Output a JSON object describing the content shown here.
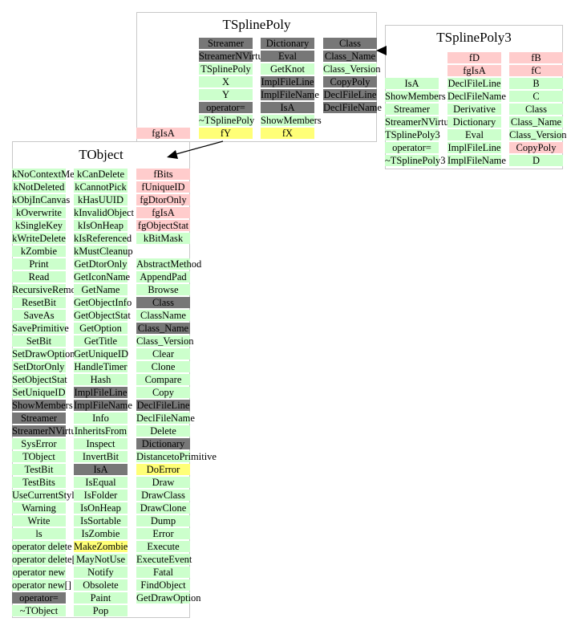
{
  "colors": {
    "method": "#ccffcc",
    "member": "#ffcccc",
    "inherited": "#777777",
    "highlight": "#ffff77",
    "border": "#c8c8c8"
  },
  "boxes": [
    {
      "id": "tsplinepoly",
      "title": "TSplinePoly",
      "columns": [
        {
          "cells": [
            {
              "text": "fgIsA",
              "kind": "member"
            }
          ]
        },
        {
          "cells": [
            {
              "text": "Streamer",
              "kind": "base"
            },
            {
              "text": "StreamerNVirtual",
              "kind": "base"
            },
            {
              "text": "TSplinePoly",
              "kind": "method"
            },
            {
              "text": "X",
              "kind": "method"
            },
            {
              "text": "Y",
              "kind": "method"
            },
            {
              "text": "operator=",
              "kind": "base"
            },
            {
              "text": "~TSplinePoly",
              "kind": "method"
            },
            {
              "text": "fY",
              "kind": "hl"
            }
          ]
        },
        {
          "cells": [
            {
              "text": "Dictionary",
              "kind": "base"
            },
            {
              "text": "Eval",
              "kind": "base"
            },
            {
              "text": "GetKnot",
              "kind": "method"
            },
            {
              "text": "ImplFileLine",
              "kind": "base"
            },
            {
              "text": "ImplFileName",
              "kind": "base"
            },
            {
              "text": "IsA",
              "kind": "base"
            },
            {
              "text": "ShowMembers",
              "kind": "method"
            },
            {
              "text": "fX",
              "kind": "hl"
            }
          ]
        },
        {
          "cells": [
            {
              "text": "Class",
              "kind": "base"
            },
            {
              "text": "Class_Name",
              "kind": "base"
            },
            {
              "text": "Class_Version",
              "kind": "method"
            },
            {
              "text": "CopyPoly",
              "kind": "base"
            },
            {
              "text": "DeclFileLine",
              "kind": "base"
            },
            {
              "text": "DeclFileName",
              "kind": "base"
            }
          ]
        }
      ]
    },
    {
      "id": "tsplinepoly3",
      "title": "TSplinePoly3",
      "columns": [
        {
          "cells": [
            {
              "text": "IsA",
              "kind": "method"
            },
            {
              "text": "ShowMembers",
              "kind": "method"
            },
            {
              "text": "Streamer",
              "kind": "method"
            },
            {
              "text": "StreamerNVirtual",
              "kind": "method"
            },
            {
              "text": "TSplinePoly3",
              "kind": "method"
            },
            {
              "text": "operator=",
              "kind": "method"
            },
            {
              "text": "~TSplinePoly3",
              "kind": "method"
            }
          ]
        },
        {
          "cells": [
            {
              "text": "fD",
              "kind": "member"
            },
            {
              "text": "fgIsA",
              "kind": "member"
            },
            {
              "text": "DeclFileLine",
              "kind": "method"
            },
            {
              "text": "DeclFileName",
              "kind": "method"
            },
            {
              "text": "Derivative",
              "kind": "method"
            },
            {
              "text": "Dictionary",
              "kind": "method"
            },
            {
              "text": "Eval",
              "kind": "method"
            },
            {
              "text": "ImplFileLine",
              "kind": "method"
            },
            {
              "text": "ImplFileName",
              "kind": "method"
            }
          ]
        },
        {
          "cells": [
            {
              "text": "fB",
              "kind": "member"
            },
            {
              "text": "fC",
              "kind": "member"
            },
            {
              "text": "B",
              "kind": "method"
            },
            {
              "text": "C",
              "kind": "method"
            },
            {
              "text": "Class",
              "kind": "method"
            },
            {
              "text": "Class_Name",
              "kind": "method"
            },
            {
              "text": "Class_Version",
              "kind": "method"
            },
            {
              "text": "CopyPoly",
              "kind": "member"
            },
            {
              "text": "D",
              "kind": "method"
            }
          ]
        }
      ]
    },
    {
      "id": "tobject",
      "title": "TObject",
      "columns": [
        {
          "cells": [
            {
              "text": "kNoContextMenu",
              "kind": "method"
            },
            {
              "text": "kNotDeleted",
              "kind": "method"
            },
            {
              "text": "kObjInCanvas",
              "kind": "method"
            },
            {
              "text": "kOverwrite",
              "kind": "method"
            },
            {
              "text": "kSingleKey",
              "kind": "method"
            },
            {
              "text": "kWriteDelete",
              "kind": "method"
            },
            {
              "text": "kZombie",
              "kind": "method"
            },
            {
              "text": "Print",
              "kind": "method"
            },
            {
              "text": "Read",
              "kind": "method"
            },
            {
              "text": "RecursiveRemove",
              "kind": "method"
            },
            {
              "text": "ResetBit",
              "kind": "method"
            },
            {
              "text": "SaveAs",
              "kind": "method"
            },
            {
              "text": "SavePrimitive",
              "kind": "method"
            },
            {
              "text": "SetBit",
              "kind": "method"
            },
            {
              "text": "SetDrawOption",
              "kind": "method"
            },
            {
              "text": "SetDtorOnly",
              "kind": "method"
            },
            {
              "text": "SetObjectStat",
              "kind": "method"
            },
            {
              "text": "SetUniqueID",
              "kind": "method"
            },
            {
              "text": "ShowMembers",
              "kind": "base"
            },
            {
              "text": "Streamer",
              "kind": "base"
            },
            {
              "text": "StreamerNVirtual",
              "kind": "base"
            },
            {
              "text": "SysError",
              "kind": "method"
            },
            {
              "text": "TObject",
              "kind": "method"
            },
            {
              "text": "TestBit",
              "kind": "method"
            },
            {
              "text": "TestBits",
              "kind": "method"
            },
            {
              "text": "UseCurrentStyle",
              "kind": "method"
            },
            {
              "text": "Warning",
              "kind": "method"
            },
            {
              "text": "Write",
              "kind": "method"
            },
            {
              "text": "ls",
              "kind": "method"
            },
            {
              "text": "operator delete",
              "kind": "method"
            },
            {
              "text": "operator delete[]",
              "kind": "method"
            },
            {
              "text": "operator new",
              "kind": "method"
            },
            {
              "text": "operator new[]",
              "kind": "method"
            },
            {
              "text": "operator=",
              "kind": "base"
            },
            {
              "text": "~TObject",
              "kind": "method"
            }
          ]
        },
        {
          "cells": [
            {
              "text": "kCanDelete",
              "kind": "method"
            },
            {
              "text": "kCannotPick",
              "kind": "method"
            },
            {
              "text": "kHasUUID",
              "kind": "method"
            },
            {
              "text": "kInvalidObject",
              "kind": "method"
            },
            {
              "text": "kIsOnHeap",
              "kind": "method"
            },
            {
              "text": "kIsReferenced",
              "kind": "method"
            },
            {
              "text": "kMustCleanup",
              "kind": "method"
            },
            {
              "text": "GetDtorOnly",
              "kind": "method"
            },
            {
              "text": "GetIconName",
              "kind": "method"
            },
            {
              "text": "GetName",
              "kind": "method"
            },
            {
              "text": "GetObjectInfo",
              "kind": "method"
            },
            {
              "text": "GetObjectStat",
              "kind": "method"
            },
            {
              "text": "GetOption",
              "kind": "method"
            },
            {
              "text": "GetTitle",
              "kind": "method"
            },
            {
              "text": "GetUniqueID",
              "kind": "method"
            },
            {
              "text": "HandleTimer",
              "kind": "method"
            },
            {
              "text": "Hash",
              "kind": "method"
            },
            {
              "text": "ImplFileLine",
              "kind": "base"
            },
            {
              "text": "ImplFileName",
              "kind": "base"
            },
            {
              "text": "Info",
              "kind": "method"
            },
            {
              "text": "InheritsFrom",
              "kind": "method"
            },
            {
              "text": "Inspect",
              "kind": "method"
            },
            {
              "text": "InvertBit",
              "kind": "method"
            },
            {
              "text": "IsA",
              "kind": "base"
            },
            {
              "text": "IsEqual",
              "kind": "method"
            },
            {
              "text": "IsFolder",
              "kind": "method"
            },
            {
              "text": "IsOnHeap",
              "kind": "method"
            },
            {
              "text": "IsSortable",
              "kind": "method"
            },
            {
              "text": "IsZombie",
              "kind": "method"
            },
            {
              "text": "MakeZombie",
              "kind": "hl"
            },
            {
              "text": "MayNotUse",
              "kind": "method"
            },
            {
              "text": "Notify",
              "kind": "method"
            },
            {
              "text": "Obsolete",
              "kind": "method"
            },
            {
              "text": "Paint",
              "kind": "method"
            },
            {
              "text": "Pop",
              "kind": "method"
            }
          ]
        },
        {
          "cells": [
            {
              "text": "fBits",
              "kind": "member"
            },
            {
              "text": "fUniqueID",
              "kind": "member"
            },
            {
              "text": "fgDtorOnly",
              "kind": "member"
            },
            {
              "text": "fgIsA",
              "kind": "member"
            },
            {
              "text": "fgObjectStat",
              "kind": "member"
            },
            {
              "text": "kBitMask",
              "kind": "method"
            },
            {
              "text": "",
              "kind": "none"
            },
            {
              "text": "AbstractMethod",
              "kind": "method"
            },
            {
              "text": "AppendPad",
              "kind": "method"
            },
            {
              "text": "Browse",
              "kind": "method"
            },
            {
              "text": "Class",
              "kind": "base"
            },
            {
              "text": "ClassName",
              "kind": "method"
            },
            {
              "text": "Class_Name",
              "kind": "base"
            },
            {
              "text": "Class_Version",
              "kind": "method"
            },
            {
              "text": "Clear",
              "kind": "method"
            },
            {
              "text": "Clone",
              "kind": "method"
            },
            {
              "text": "Compare",
              "kind": "method"
            },
            {
              "text": "Copy",
              "kind": "method"
            },
            {
              "text": "DeclFileLine",
              "kind": "base"
            },
            {
              "text": "DeclFileName",
              "kind": "method"
            },
            {
              "text": "Delete",
              "kind": "method"
            },
            {
              "text": "Dictionary",
              "kind": "base"
            },
            {
              "text": "DistancetoPrimitive",
              "kind": "method"
            },
            {
              "text": "DoError",
              "kind": "hl"
            },
            {
              "text": "Draw",
              "kind": "method"
            },
            {
              "text": "DrawClass",
              "kind": "method"
            },
            {
              "text": "DrawClone",
              "kind": "method"
            },
            {
              "text": "Dump",
              "kind": "method"
            },
            {
              "text": "Error",
              "kind": "method"
            },
            {
              "text": "Execute",
              "kind": "method"
            },
            {
              "text": "ExecuteEvent",
              "kind": "method"
            },
            {
              "text": "Fatal",
              "kind": "method"
            },
            {
              "text": "FindObject",
              "kind": "method"
            },
            {
              "text": "GetDrawOption",
              "kind": "method"
            }
          ]
        }
      ]
    }
  ]
}
